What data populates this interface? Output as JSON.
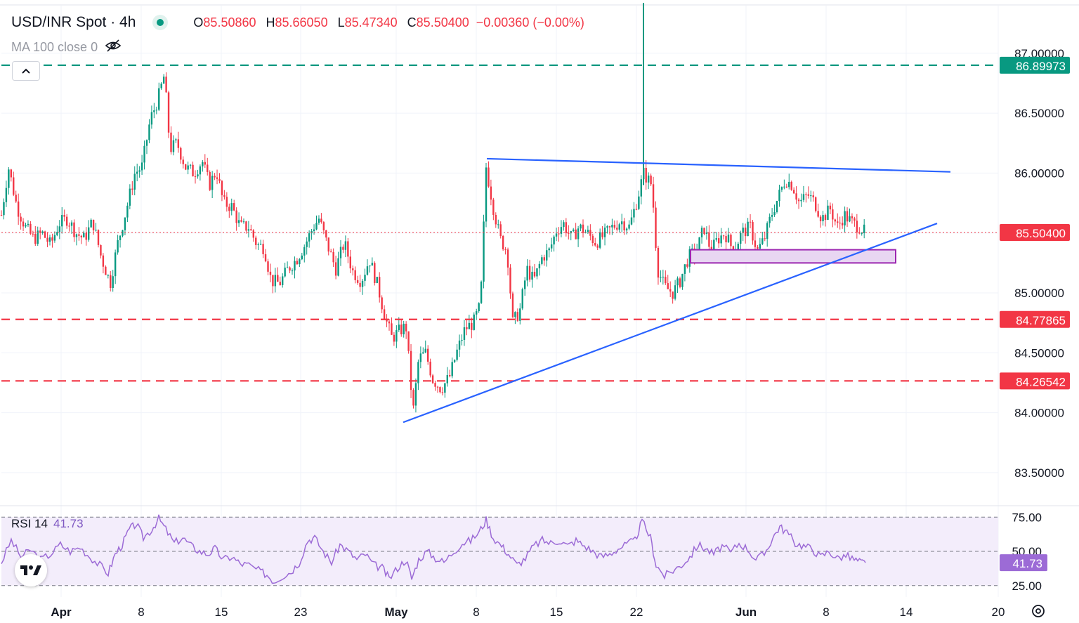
{
  "header": {
    "symbol": "USD/INR Spot · 4h",
    "open_label": "O",
    "open": "85.50860",
    "high_label": "H",
    "high": "85.66050",
    "low_label": "L",
    "low": "85.47340",
    "close_label": "C",
    "close": "85.50400",
    "change": "−0.00360 (−0.00%)"
  },
  "indicator": {
    "ma_label": "MA 100 close 0"
  },
  "rsi": {
    "name": "RSI 14",
    "value": "41.73",
    "levels": [
      75,
      50,
      25
    ],
    "current": 41.73
  },
  "colors": {
    "up": "#089981",
    "down": "#f23645",
    "trendline": "#2962ff",
    "rsi": "#9c6bd6",
    "zone_border": "#9c27b0",
    "zone_fill": "#e8d6f2",
    "resistance": "#089981",
    "support": "#f23645"
  },
  "chart_data": {
    "type": "candlestick",
    "title": "USD/INR Spot · 4h",
    "y_ticks": [
      "87.00000",
      "86.50000",
      "86.00000",
      "85.50000",
      "85.00000",
      "84.50000",
      "84.00000",
      "83.50000"
    ],
    "rsi_ticks": [
      "75.00",
      "50.00",
      "25.00"
    ],
    "x_ticks": [
      "Apr",
      "8",
      "15",
      "23",
      "May",
      "8",
      "15",
      "22",
      "Jun",
      "8",
      "14",
      "20"
    ],
    "ylim": [
      83.3,
      87.5
    ],
    "last_price": 85.504,
    "ohlc": {
      "open": 85.5086,
      "high": 85.6605,
      "low": 85.4734,
      "close": 85.504
    },
    "horizontal_levels": [
      {
        "value": 86.89973,
        "label": "86.89973",
        "style": "dashed",
        "color": "#089981"
      },
      {
        "value": 84.77865,
        "label": "84.77865",
        "style": "dashed",
        "color": "#f23645"
      },
      {
        "value": 84.26542,
        "label": "84.26542",
        "style": "dashed",
        "color": "#f23645"
      }
    ],
    "last_price_label": "85.50400",
    "rsi_current_label": "41.73",
    "trendlines": [
      {
        "name": "upper",
        "start": [
          "May 8",
          86.12
        ],
        "end": [
          "Jun 17",
          86.01
        ]
      },
      {
        "name": "lower",
        "start": [
          "May 1",
          83.92
        ],
        "end": [
          "Jun 15",
          85.58
        ]
      }
    ],
    "zone": {
      "start": "May 27",
      "end": "Jun 13",
      "low": 85.25,
      "high": 85.36
    },
    "price_path": [
      [
        0,
        85.65
      ],
      [
        10,
        86.05
      ],
      [
        22,
        85.72
      ],
      [
        34,
        85.55
      ],
      [
        46,
        85.45
      ],
      [
        58,
        85.5
      ],
      [
        70,
        85.4
      ],
      [
        82,
        85.58
      ],
      [
        94,
        85.62
      ],
      [
        106,
        85.5
      ],
      [
        118,
        85.45
      ],
      [
        130,
        85.6
      ],
      [
        142,
        85.3
      ],
      [
        155,
        85.08
      ],
      [
        165,
        85.4
      ],
      [
        178,
        85.7
      ],
      [
        190,
        86.0
      ],
      [
        200,
        86.05
      ],
      [
        212,
        86.45
      ],
      [
        222,
        86.6
      ],
      [
        232,
        86.82
      ],
      [
        240,
        86.2
      ],
      [
        250,
        86.25
      ],
      [
        262,
        86.05
      ],
      [
        274,
        86.0
      ],
      [
        286,
        86.1
      ],
      [
        296,
        85.9
      ],
      [
        306,
        86.02
      ],
      [
        316,
        85.75
      ],
      [
        328,
        85.72
      ],
      [
        340,
        85.55
      ],
      [
        352,
        85.55
      ],
      [
        364,
        85.4
      ],
      [
        374,
        85.38
      ],
      [
        384,
        85.1
      ],
      [
        396,
        85.08
      ],
      [
        408,
        85.2
      ],
      [
        420,
        85.28
      ],
      [
        432,
        85.4
      ],
      [
        444,
        85.55
      ],
      [
        452,
        85.62
      ],
      [
        464,
        85.4
      ],
      [
        476,
        85.2
      ],
      [
        488,
        85.42
      ],
      [
        500,
        85.18
      ],
      [
        512,
        85.1
      ],
      [
        524,
        85.28
      ],
      [
        536,
        85.05
      ],
      [
        546,
        84.8
      ],
      [
        556,
        84.62
      ],
      [
        566,
        84.68
      ],
      [
        576,
        84.72
      ],
      [
        586,
        84.0
      ],
      [
        594,
        84.45
      ],
      [
        604,
        84.5
      ],
      [
        614,
        84.28
      ],
      [
        626,
        84.2
      ],
      [
        638,
        84.3
      ],
      [
        648,
        84.5
      ],
      [
        660,
        84.7
      ],
      [
        672,
        84.75
      ],
      [
        682,
        84.9
      ],
      [
        690,
        86.05
      ],
      [
        700,
        85.72
      ],
      [
        710,
        85.45
      ],
      [
        720,
        85.35
      ],
      [
        728,
        84.75
      ],
      [
        738,
        84.85
      ],
      [
        748,
        85.2
      ],
      [
        758,
        85.1
      ],
      [
        770,
        85.3
      ],
      [
        780,
        85.35
      ],
      [
        790,
        85.52
      ],
      [
        800,
        85.58
      ],
      [
        812,
        85.45
      ],
      [
        822,
        85.55
      ],
      [
        834,
        85.5
      ],
      [
        846,
        85.42
      ],
      [
        858,
        85.48
      ],
      [
        870,
        85.55
      ],
      [
        882,
        85.6
      ],
      [
        894,
        85.55
      ],
      [
        906,
        85.8
      ],
      [
        914,
        86.0
      ],
      [
        926,
        85.9
      ],
      [
        934,
        85.2
      ],
      [
        944,
        85.05
      ],
      [
        956,
        85.0
      ],
      [
        966,
        85.1
      ],
      [
        978,
        85.3
      ],
      [
        990,
        85.35
      ],
      [
        1000,
        85.55
      ],
      [
        1010,
        85.35
      ],
      [
        1020,
        85.45
      ],
      [
        1030,
        85.5
      ],
      [
        1042,
        85.35
      ],
      [
        1054,
        85.5
      ],
      [
        1066,
        85.55
      ],
      [
        1076,
        85.35
      ],
      [
        1086,
        85.45
      ],
      [
        1096,
        85.65
      ],
      [
        1106,
        85.8
      ],
      [
        1116,
        85.95
      ],
      [
        1126,
        85.9
      ],
      [
        1136,
        85.75
      ],
      [
        1148,
        85.82
      ],
      [
        1158,
        85.75
      ],
      [
        1168,
        85.62
      ],
      [
        1180,
        85.7
      ],
      [
        1190,
        85.55
      ],
      [
        1200,
        85.65
      ],
      [
        1212,
        85.58
      ],
      [
        1222,
        85.55
      ],
      [
        1230,
        85.5
      ]
    ],
    "rsi_path": [
      [
        0,
        42
      ],
      [
        14,
        58
      ],
      [
        28,
        46
      ],
      [
        42,
        51
      ],
      [
        56,
        44
      ],
      [
        70,
        48
      ],
      [
        84,
        55
      ],
      [
        98,
        50
      ],
      [
        112,
        53
      ],
      [
        126,
        46
      ],
      [
        140,
        40
      ],
      [
        152,
        34
      ],
      [
        162,
        48
      ],
      [
        172,
        55
      ],
      [
        182,
        66
      ],
      [
        192,
        70
      ],
      [
        202,
        60
      ],
      [
        214,
        66
      ],
      [
        224,
        74
      ],
      [
        234,
        66
      ],
      [
        246,
        56
      ],
      [
        258,
        60
      ],
      [
        270,
        54
      ],
      [
        282,
        50
      ],
      [
        294,
        48
      ],
      [
        304,
        52
      ],
      [
        316,
        44
      ],
      [
        328,
        46
      ],
      [
        340,
        41
      ],
      [
        352,
        40
      ],
      [
        366,
        36
      ],
      [
        378,
        33
      ],
      [
        388,
        28
      ],
      [
        400,
        32
      ],
      [
        412,
        35
      ],
      [
        424,
        42
      ],
      [
        436,
        58
      ],
      [
        446,
        60
      ],
      [
        458,
        50
      ],
      [
        470,
        42
      ],
      [
        482,
        55
      ],
      [
        494,
        50
      ],
      [
        506,
        44
      ],
      [
        518,
        48
      ],
      [
        530,
        40
      ],
      [
        542,
        38
      ],
      [
        552,
        30
      ],
      [
        564,
        38
      ],
      [
        576,
        44
      ],
      [
        584,
        30
      ],
      [
        594,
        44
      ],
      [
        606,
        50
      ],
      [
        618,
        45
      ],
      [
        630,
        42
      ],
      [
        644,
        50
      ],
      [
        656,
        56
      ],
      [
        668,
        58
      ],
      [
        680,
        64
      ],
      [
        690,
        73
      ],
      [
        700,
        60
      ],
      [
        712,
        54
      ],
      [
        722,
        48
      ],
      [
        734,
        40
      ],
      [
        746,
        45
      ],
      [
        758,
        54
      ],
      [
        770,
        58
      ],
      [
        782,
        56
      ],
      [
        794,
        58
      ],
      [
        806,
        54
      ],
      [
        818,
        58
      ],
      [
        830,
        54
      ],
      [
        842,
        50
      ],
      [
        854,
        46
      ],
      [
        866,
        48
      ],
      [
        878,
        52
      ],
      [
        890,
        55
      ],
      [
        902,
        58
      ],
      [
        912,
        72
      ],
      [
        924,
        60
      ],
      [
        932,
        40
      ],
      [
        944,
        32
      ],
      [
        956,
        36
      ],
      [
        968,
        40
      ],
      [
        980,
        46
      ],
      [
        992,
        55
      ],
      [
        1002,
        52
      ],
      [
        1014,
        48
      ],
      [
        1026,
        54
      ],
      [
        1038,
        49
      ],
      [
        1050,
        56
      ],
      [
        1062,
        52
      ],
      [
        1074,
        44
      ],
      [
        1086,
        48
      ],
      [
        1098,
        60
      ],
      [
        1108,
        68
      ],
      [
        1118,
        64
      ],
      [
        1130,
        56
      ],
      [
        1142,
        54
      ],
      [
        1154,
        52
      ],
      [
        1166,
        46
      ],
      [
        1178,
        50
      ],
      [
        1190,
        45
      ],
      [
        1202,
        47
      ],
      [
        1214,
        44
      ],
      [
        1224,
        42
      ],
      [
        1230,
        41.73
      ]
    ],
    "spike": {
      "at": 914,
      "high": 87.42,
      "low": 85.9
    }
  }
}
